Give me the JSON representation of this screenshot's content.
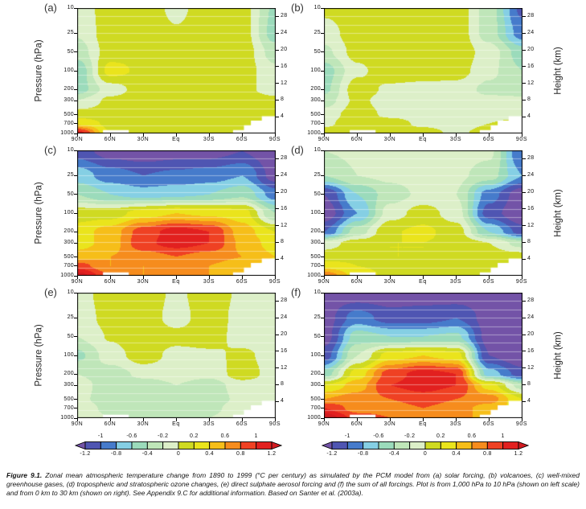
{
  "figure": {
    "caption_label": "Figure 9.1.",
    "caption_text": " Zonal mean atmospheric temperature change from 1890 to 1999 (°C per century) as simulated by the PCM model from (a) solar forcing, (b) volcanoes, (c) well-mixed greenhouse gases, (d) tropospheric and stratospheric ozone changes, (e) direct sulphate aerosol forcing and (f) the sum of all forcings. Plot is from 1,000 hPa to 10 hPa (shown on left scale) and from 0 km to 30 km (shown on right). See Appendix 9.C for additional information. Based on Santer et al. (2003a)."
  },
  "chart_common": {
    "pressure_label": "Pressure (hPa)",
    "height_label": "Height (km)",
    "pressure_ticks": [
      "10",
      "25",
      "50",
      "100",
      "200",
      "300",
      "500",
      "700",
      "1000"
    ],
    "pressure_fracs": [
      0,
      0.199,
      0.3495,
      0.5,
      0.6505,
      0.7386,
      0.8495,
      0.9226,
      1
    ],
    "height_ticks": [
      "28",
      "24",
      "20",
      "16",
      "12",
      "8",
      "4"
    ],
    "height_axis_km_range": [
      0,
      30
    ],
    "lat_ticks": [
      "90N",
      "60N",
      "30N",
      "Eq",
      "30S",
      "60S",
      "90S"
    ],
    "thresholds": [
      -1.2,
      -1,
      -0.8,
      -0.6,
      -0.4,
      -0.2,
      0,
      0.2,
      0.4,
      0.6,
      0.8,
      1,
      1.2
    ],
    "palette": [
      "#7353A7",
      "#4F55B2",
      "#467BCB",
      "#85CFE4",
      "#9BDBBB",
      "#BFE6B9",
      "#DCEFC8",
      "#CFDA22",
      "#EAE41C",
      "#F6BE19",
      "#F68C1D",
      "#EF4123",
      "#E2201F",
      "#D21B20"
    ],
    "surface_mask_polygons": [
      [
        [
          0.785,
          1
        ],
        [
          0.785,
          0.972
        ],
        [
          0.84,
          0.972
        ],
        [
          0.84,
          0.935
        ],
        [
          0.875,
          0.935
        ],
        [
          0.875,
          0.898
        ],
        [
          0.93,
          0.898
        ],
        [
          0.93,
          0.862
        ],
        [
          1,
          0.862
        ],
        [
          1,
          1
        ]
      ],
      [
        [
          0.13,
          0.972
        ],
        [
          0.26,
          0.972
        ],
        [
          0.26,
          1
        ],
        [
          0.13,
          1
        ]
      ]
    ]
  },
  "colorbar": {
    "upper_labels": [
      "-1",
      "-0.6",
      "-0.2",
      "0.2",
      "0.6",
      "1"
    ],
    "lower_labels": [
      "-1.2",
      "-0.8",
      "-0.4",
      "0",
      "0.4",
      "0.8",
      "1.2"
    ]
  },
  "chart_data": [
    {
      "id": "a",
      "label": "(a)",
      "forcing": "solar forcing",
      "type": "contour",
      "units": "°C per century",
      "x": [
        "90N",
        "60N",
        "30N",
        "Eq",
        "30S",
        "60S",
        "90S"
      ],
      "pressure_levels": [
        10,
        25,
        50,
        100,
        200,
        300,
        500,
        700,
        1000
      ],
      "values": [
        [
          -0.12,
          0.1,
          0.12,
          -0.05,
          0.12,
          0.08,
          -0.45
        ],
        [
          -0.18,
          0.12,
          0.15,
          0.02,
          0.15,
          0.1,
          -0.5
        ],
        [
          -0.3,
          0.1,
          0.15,
          0.1,
          0.15,
          0.12,
          -0.3
        ],
        [
          -0.55,
          0.28,
          0.15,
          0.12,
          0.1,
          0.1,
          -0.15
        ],
        [
          -0.5,
          -0.1,
          0.1,
          0.15,
          0.12,
          0.05,
          -0.08
        ],
        [
          -0.2,
          0.05,
          0.12,
          0.15,
          0.12,
          0.1,
          0.05
        ],
        [
          0.1,
          0.1,
          0.12,
          0.12,
          0.15,
          0.15,
          0.1
        ],
        [
          0.35,
          0.15,
          0.1,
          0.1,
          0.12,
          0.1,
          0.05
        ],
        [
          1.1,
          0.18,
          0.1,
          0.1,
          0.1,
          0.1,
          0.05
        ]
      ]
    },
    {
      "id": "b",
      "label": "(b)",
      "forcing": "volcanoes",
      "type": "contour",
      "units": "°C per century",
      "x": [
        "90N",
        "60N",
        "30N",
        "Eq",
        "30S",
        "60S",
        "90S"
      ],
      "pressure_levels": [
        10,
        25,
        50,
        100,
        200,
        300,
        500,
        700,
        1000
      ],
      "values": [
        [
          0.05,
          0.12,
          0.15,
          0.12,
          0.15,
          -0.3,
          -1.05
        ],
        [
          -0.1,
          0.12,
          0.15,
          0.15,
          0.15,
          -0.3,
          -0.9
        ],
        [
          -0.25,
          0.08,
          0.15,
          0.15,
          0.15,
          -0.1,
          -0.5
        ],
        [
          -0.5,
          -0.05,
          0.15,
          0.15,
          0.1,
          -0.15,
          -0.4
        ],
        [
          -0.45,
          0.12,
          -0.05,
          -0.1,
          -0.1,
          -0.25,
          -0.3
        ],
        [
          -0.3,
          0.05,
          -0.1,
          -0.1,
          -0.12,
          -0.15,
          -0.15
        ],
        [
          -0.1,
          0.1,
          -0.05,
          -0.1,
          -0.1,
          -0.1,
          -0.1
        ],
        [
          -0.05,
          0.15,
          0.1,
          -0.05,
          -0.1,
          0.0,
          0.1
        ],
        [
          0.1,
          0.15,
          0.1,
          0.1,
          -0.05,
          0.1,
          0.1
        ]
      ]
    },
    {
      "id": "c",
      "label": "(c)",
      "forcing": "well-mixed greenhouse gases",
      "type": "contour",
      "units": "°C per century",
      "x": [
        "90N",
        "60N",
        "30N",
        "Eq",
        "30S",
        "60S",
        "90S"
      ],
      "pressure_levels": [
        10,
        25,
        50,
        100,
        200,
        300,
        500,
        700,
        1000
      ],
      "values": [
        [
          -1.1,
          -1.3,
          -1.35,
          -1.3,
          -1.3,
          -1.2,
          -1.4
        ],
        [
          -0.7,
          -0.9,
          -1.0,
          -0.95,
          -0.9,
          -0.8,
          -1.3
        ],
        [
          -0.4,
          -0.6,
          -0.7,
          -0.65,
          -0.6,
          -0.45,
          -0.9
        ],
        [
          0.1,
          0.1,
          0.3,
          0.4,
          0.35,
          0.3,
          -0.4
        ],
        [
          0.3,
          0.5,
          0.9,
          1.1,
          1.0,
          0.5,
          0.2
        ],
        [
          0.3,
          0.5,
          0.95,
          1.1,
          1.0,
          0.55,
          0.3
        ],
        [
          0.5,
          0.6,
          0.7,
          0.8,
          0.7,
          0.6,
          0.4
        ],
        [
          0.9,
          0.6,
          0.6,
          0.7,
          0.6,
          0.45,
          0.3
        ],
        [
          1.3,
          0.8,
          0.6,
          0.6,
          0.6,
          0.45,
          0.3
        ]
      ]
    },
    {
      "id": "d",
      "label": "(d)",
      "forcing": "tropospheric and stratospheric ozone changes",
      "type": "contour",
      "units": "°C per century",
      "x": [
        "90N",
        "60N",
        "30N",
        "Eq",
        "30S",
        "60S",
        "90S"
      ],
      "pressure_levels": [
        10,
        25,
        50,
        100,
        200,
        300,
        500,
        700,
        1000
      ],
      "values": [
        [
          -0.2,
          -0.15,
          -0.1,
          -0.1,
          -0.1,
          -0.15,
          -1.0
        ],
        [
          -0.4,
          -0.2,
          -0.15,
          -0.1,
          -0.15,
          -0.3,
          -0.8
        ],
        [
          -1.2,
          -0.6,
          -0.3,
          -0.15,
          -0.2,
          -0.9,
          -1.35
        ],
        [
          -1.35,
          -0.8,
          -0.1,
          0.1,
          -0.1,
          -1.1,
          -1.4
        ],
        [
          -1.0,
          -0.3,
          0.18,
          0.25,
          0.1,
          -0.6,
          -1.1
        ],
        [
          -0.1,
          0.1,
          0.2,
          0.2,
          0.15,
          0.0,
          -0.3
        ],
        [
          0.1,
          0.15,
          0.2,
          0.2,
          0.15,
          0.1,
          0.1
        ],
        [
          0.3,
          0.2,
          0.15,
          0.15,
          0.15,
          0.1,
          0.1
        ],
        [
          0.75,
          0.3,
          0.15,
          0.15,
          0.1,
          0.1,
          0.1
        ]
      ]
    },
    {
      "id": "e",
      "label": "(e)",
      "forcing": "direct sulphate aerosol forcing",
      "type": "contour",
      "units": "°C per century",
      "x": [
        "90N",
        "60N",
        "30N",
        "Eq",
        "30S",
        "60S",
        "90S"
      ],
      "pressure_levels": [
        10,
        25,
        50,
        100,
        200,
        300,
        500,
        700,
        1000
      ],
      "values": [
        [
          -0.1,
          0.12,
          0.15,
          -0.05,
          0.15,
          -0.05,
          -0.12
        ],
        [
          -0.12,
          0.08,
          0.15,
          -0.1,
          0.15,
          -0.1,
          -0.12
        ],
        [
          -0.2,
          0.02,
          0.15,
          0.08,
          0.12,
          -0.1,
          -0.15
        ],
        [
          -0.45,
          -0.1,
          0.12,
          -0.08,
          -0.05,
          0.05,
          -0.1
        ],
        [
          -0.2,
          -0.3,
          -0.15,
          -0.12,
          -0.15,
          0.12,
          -0.1
        ],
        [
          -0.12,
          -0.3,
          -0.3,
          -0.2,
          -0.3,
          -0.1,
          -0.1
        ],
        [
          -0.15,
          -0.3,
          -0.35,
          -0.3,
          -0.3,
          -0.15,
          -0.1
        ],
        [
          -0.1,
          -0.25,
          -0.3,
          -0.3,
          -0.25,
          -0.1,
          0.05
        ],
        [
          -0.1,
          -0.2,
          -0.3,
          -0.25,
          -0.2,
          -0.1,
          0.05
        ]
      ]
    },
    {
      "id": "f",
      "label": "(f)",
      "forcing": "the sum of all forcings",
      "type": "contour",
      "units": "°C per century",
      "x": [
        "90N",
        "60N",
        "30N",
        "Eq",
        "30S",
        "60S",
        "90S"
      ],
      "pressure_levels": [
        10,
        25,
        50,
        100,
        200,
        300,
        500,
        700,
        1000
      ],
      "values": [
        [
          -1.35,
          -1.35,
          -1.35,
          -1.3,
          -1.35,
          -1.35,
          -1.4
        ],
        [
          -1.3,
          -0.9,
          -1.1,
          -1.1,
          -1.0,
          -1.3,
          -1.4
        ],
        [
          -1.3,
          -0.5,
          -0.6,
          -0.6,
          -0.55,
          -1.3,
          -1.4
        ],
        [
          -1.1,
          -0.2,
          0.3,
          0.4,
          0.3,
          -1.2,
          -1.4
        ],
        [
          -0.5,
          0.3,
          0.9,
          1.1,
          1.0,
          -0.7,
          -1.1
        ],
        [
          0.2,
          0.5,
          1.0,
          1.1,
          1.0,
          0.3,
          -0.3
        ],
        [
          0.6,
          0.7,
          0.8,
          0.9,
          0.8,
          0.7,
          0.2
        ],
        [
          1.0,
          0.7,
          0.7,
          0.8,
          0.7,
          0.5,
          0.3
        ],
        [
          1.35,
          0.9,
          0.8,
          0.7,
          0.7,
          0.5,
          0.3
        ]
      ]
    }
  ]
}
